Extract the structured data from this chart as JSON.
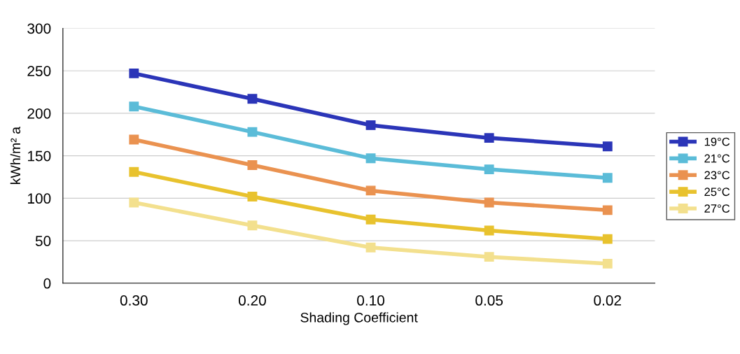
{
  "chart_data": {
    "type": "line",
    "xlabel": "Shading Coefficient",
    "ylabel": "kWh/m² a",
    "categories": [
      "0.30",
      "0.20",
      "0.10",
      "0.05",
      "0.02"
    ],
    "series": [
      {
        "name": "19°C",
        "color": "#2b35b8",
        "values": [
          247,
          217,
          186,
          171,
          161
        ]
      },
      {
        "name": "21°C",
        "color": "#5bbcd8",
        "values": [
          208,
          178,
          147,
          134,
          124
        ]
      },
      {
        "name": "23°C",
        "color": "#ea9250",
        "values": [
          169,
          139,
          109,
          95,
          86
        ]
      },
      {
        "name": "25°C",
        "color": "#e8c22e",
        "values": [
          131,
          102,
          75,
          62,
          52
        ]
      },
      {
        "name": "27°C",
        "color": "#f3e08e",
        "values": [
          95,
          68,
          42,
          31,
          23
        ]
      }
    ],
    "ylim": [
      0,
      300
    ],
    "yticks": [
      0,
      50,
      100,
      150,
      200,
      250,
      300
    ],
    "grid": "y",
    "legend": "right",
    "marker": "square",
    "line_style": "solid"
  }
}
